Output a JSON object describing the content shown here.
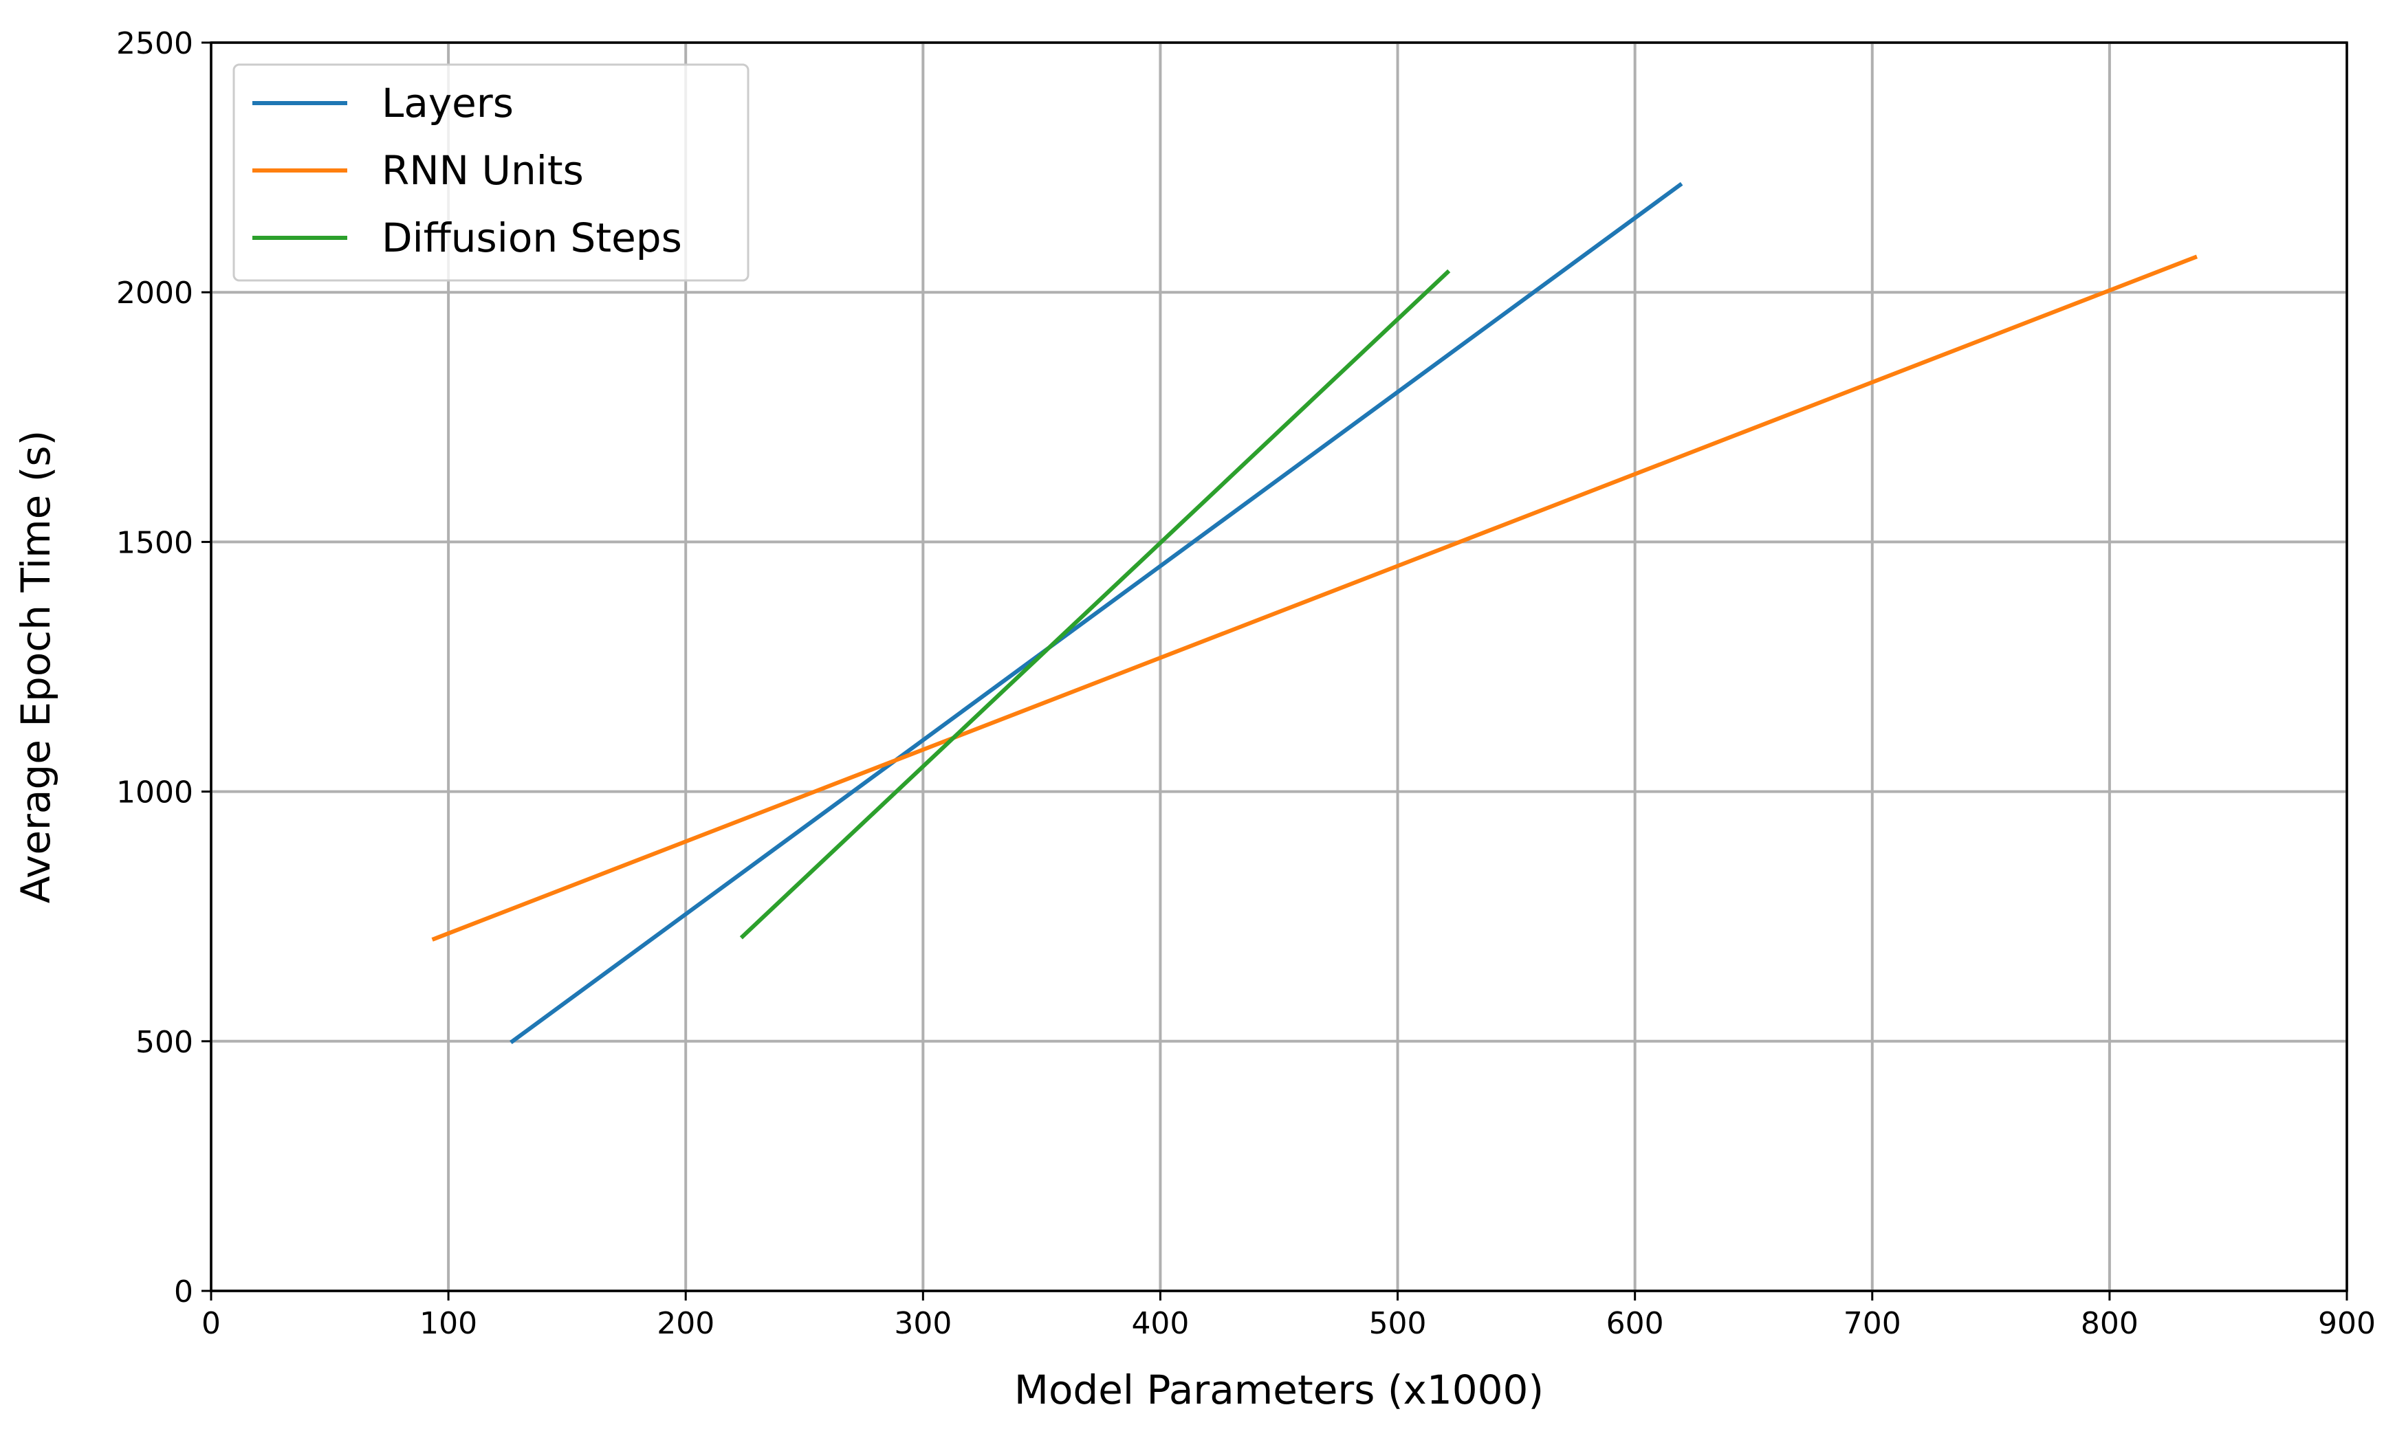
{
  "chart_data": {
    "type": "line",
    "xlabel": "Model Parameters (x1000)",
    "ylabel": "Average Epoch Time (s)",
    "xlim": [
      0,
      900
    ],
    "ylim": [
      0,
      2500
    ],
    "xticks": [
      0,
      100,
      200,
      300,
      400,
      500,
      600,
      700,
      800,
      900
    ],
    "yticks": [
      0,
      500,
      1000,
      1500,
      2000,
      2500
    ],
    "grid": true,
    "legend_position": "top-left",
    "series": [
      {
        "name": "Layers",
        "color": "#1f77b4",
        "x": [
          127,
          619
        ],
        "y": [
          500,
          2215
        ]
      },
      {
        "name": "RNN Units",
        "color": "#ff7f0e",
        "x": [
          94,
          836
        ],
        "y": [
          705,
          2070
        ]
      },
      {
        "name": "Diffusion Steps",
        "color": "#2ca02c",
        "x": [
          224,
          521
        ],
        "y": [
          710,
          2040
        ]
      }
    ]
  }
}
